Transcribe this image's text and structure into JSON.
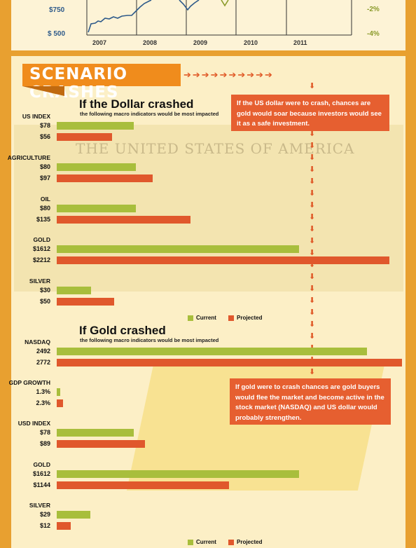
{
  "top_chart": {
    "left_ticks": [
      "$750",
      "$ 500"
    ],
    "right_ticks": [
      "-2%",
      "-4%"
    ],
    "years": [
      "2007",
      "2008",
      "2009",
      "2010",
      "2011"
    ]
  },
  "banner": {
    "title": "SCENARIO CRASHES"
  },
  "bill_text": "THE UNITED STATES OF AMERICA",
  "colors": {
    "current": "#a8be3c",
    "projected": "#e0582c",
    "accent": "#f08c1c"
  },
  "callouts": {
    "dollar": "If the US dollar were to crash, chances are gold would soar because investors would see it as a safe investment.",
    "gold": "If gold were to crash chances are gold buyers would flee the market and become active in the stock market (NASDAQ) and US dollar would probably strengthen."
  },
  "legend": {
    "current": "Current",
    "projected": "Projected"
  },
  "chart_data": [
    {
      "type": "bar",
      "title": "If the Dollar crashed",
      "subtitle": "the following macro indicators would be most impacted",
      "categories": [
        {
          "name": "US INDEX",
          "current_label": "$78",
          "projected_label": "$56",
          "current": 78,
          "projected": 56
        },
        {
          "name": "AGRICULTURE",
          "current_label": "$80",
          "projected_label": "$97",
          "current": 80,
          "projected": 97
        },
        {
          "name": "OIL",
          "current_label": "$80",
          "projected_label": "$135",
          "current": 80,
          "projected": 135
        },
        {
          "name": "GOLD",
          "current_label": "$1612",
          "projected_label": "$2212",
          "current": 1612,
          "projected": 2212
        },
        {
          "name": "SILVER",
          "current_label": "$30",
          "projected_label": "$50",
          "current": 30,
          "projected": 50
        }
      ],
      "series": [
        {
          "name": "Current"
        },
        {
          "name": "Projected"
        }
      ]
    },
    {
      "type": "bar",
      "title": "If Gold crashed",
      "subtitle": "the following macro indicators would be most impacted",
      "categories": [
        {
          "name": "NASDAQ",
          "current_label": "2492",
          "projected_label": "2772",
          "current": 2492,
          "projected": 2772
        },
        {
          "name": "GDP GROWTH",
          "current_label": "1.3%",
          "projected_label": "2.3%",
          "current": 1.3,
          "projected": 2.3
        },
        {
          "name": "USD INDEX",
          "current_label": "$78",
          "projected_label": "$89",
          "current": 78,
          "projected": 89
        },
        {
          "name": "GOLD",
          "current_label": "$1612",
          "projected_label": "$1144",
          "current": 1612,
          "projected": 1144
        },
        {
          "name": "SILVER",
          "current_label": "$29",
          "projected_label": "$12",
          "current": 29,
          "projected": 12
        }
      ],
      "series": [
        {
          "name": "Current"
        },
        {
          "name": "Projected"
        }
      ]
    }
  ]
}
